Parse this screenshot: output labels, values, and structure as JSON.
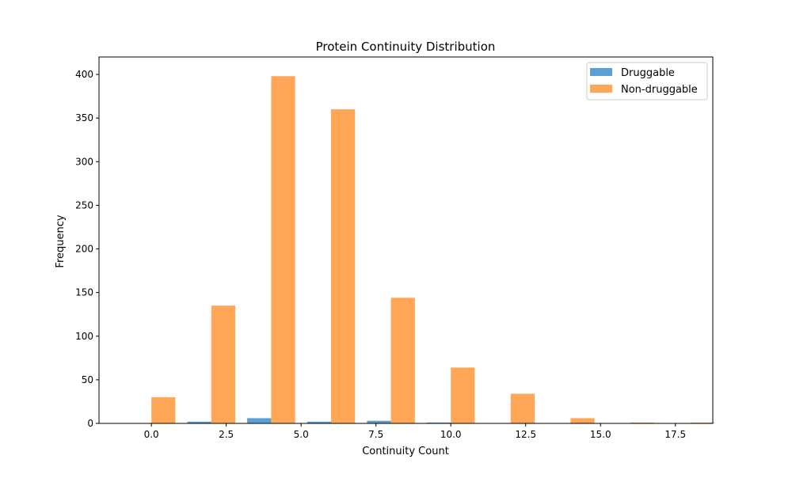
{
  "chart_data": {
    "type": "bar",
    "title": "Protein Continuity Distribution",
    "xlabel": "Continuity Count",
    "ylabel": "Frequency",
    "xlim": [
      -1.75,
      18.75
    ],
    "ylim": [
      0,
      420
    ],
    "xticks": [
      0.0,
      2.5,
      5.0,
      7.5,
      10.0,
      12.5,
      15.0,
      17.5
    ],
    "xtick_labels": [
      "0.0",
      "2.5",
      "5.0",
      "7.5",
      "10.0",
      "12.5",
      "15.0",
      "17.5"
    ],
    "yticks": [
      0,
      50,
      100,
      150,
      200,
      250,
      300,
      350,
      400
    ],
    "ytick_labels": [
      "0",
      "50",
      "100",
      "150",
      "200",
      "250",
      "300",
      "350",
      "400"
    ],
    "bin_edges": [
      -1,
      1,
      3,
      5,
      7,
      9,
      11,
      13,
      15,
      17,
      19
    ],
    "series": [
      {
        "name": "Druggable",
        "color": "#5c9fd4",
        "values": [
          0,
          2,
          6,
          2,
          3,
          1,
          0,
          0,
          0,
          0
        ]
      },
      {
        "name": "Non-druggable",
        "color": "#ffa657",
        "values": [
          30,
          135,
          398,
          360,
          144,
          64,
          34,
          6,
          1,
          1
        ]
      }
    ],
    "grid": false,
    "legend_position": "top-right"
  }
}
